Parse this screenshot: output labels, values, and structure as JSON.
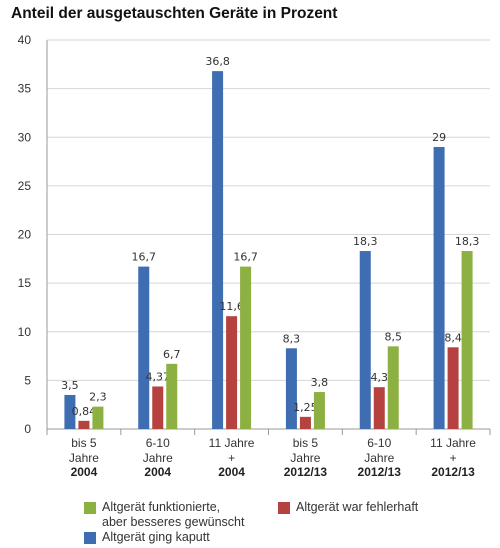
{
  "chart_data": {
    "type": "bar",
    "title": "Anteil der ausgetauschten Geräte in Prozent",
    "categories": [
      {
        "label": [
          "bis 5",
          "Jahre"
        ],
        "group": "2004"
      },
      {
        "label": [
          "6-10",
          "Jahre"
        ],
        "group": "2004"
      },
      {
        "label": [
          "11 Jahre",
          "+"
        ],
        "group": "2004"
      },
      {
        "label": [
          "bis 5",
          "Jahre"
        ],
        "group": "2012/13"
      },
      {
        "label": [
          "6-10",
          "Jahre"
        ],
        "group": "2012/13"
      },
      {
        "label": [
          "11 Jahre",
          "+"
        ],
        "group": "2012/13"
      }
    ],
    "series": [
      {
        "name": "Altgerät ging kaputt",
        "color": "#3f6db1",
        "values": [
          3.5,
          16.7,
          36.8,
          8.3,
          18.3,
          29
        ],
        "labels": [
          "3,5",
          "16,7",
          "36,8",
          "8,3",
          "18,3",
          "29"
        ]
      },
      {
        "name": "Altgerät war fehlerhaft",
        "color": "#b5423f",
        "values": [
          0.84,
          4.37,
          11.6,
          1.25,
          4.3,
          8.4
        ],
        "labels": [
          "0,84",
          "4,37",
          "11,6",
          "1,25",
          "4,3",
          "8,4"
        ]
      },
      {
        "name": "Altgerät funktionierte,\naber besseres gewünscht",
        "color": "#8db043",
        "values": [
          2.3,
          6.7,
          16.7,
          3.8,
          8.5,
          18.3
        ],
        "labels": [
          "2,3",
          "6,7",
          "16,7",
          "3,8",
          "8,5",
          "18,3"
        ]
      }
    ],
    "yticks": [
      0,
      5,
      10,
      15,
      20,
      25,
      30,
      35,
      40
    ],
    "ylim": [
      0,
      40
    ],
    "grid": true,
    "legend_position": "bottom"
  }
}
